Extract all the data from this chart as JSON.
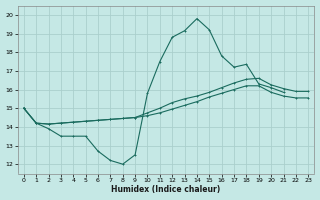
{
  "xlabel": "Humidex (Indice chaleur)",
  "xlim": [
    -0.5,
    23.5
  ],
  "ylim": [
    11.5,
    20.5
  ],
  "xticks": [
    0,
    1,
    2,
    3,
    4,
    5,
    6,
    7,
    8,
    9,
    10,
    11,
    12,
    13,
    14,
    15,
    16,
    17,
    18,
    19,
    20,
    21,
    22,
    23
  ],
  "yticks": [
    12,
    13,
    14,
    15,
    16,
    17,
    18,
    19,
    20
  ],
  "bg_color": "#c5e8e5",
  "grid_color": "#aacfcc",
  "line_color": "#1a6b5e",
  "line1_x": [
    0,
    1,
    2,
    3,
    4,
    5,
    6,
    7,
    8,
    9,
    10,
    11,
    12,
    13,
    14,
    15,
    16,
    17,
    18,
    19,
    20,
    21
  ],
  "line1_y": [
    15.0,
    14.2,
    13.9,
    13.5,
    13.5,
    13.5,
    12.7,
    12.2,
    12.0,
    12.5,
    15.8,
    17.5,
    18.8,
    19.15,
    19.8,
    19.2,
    17.8,
    17.2,
    17.35,
    16.3,
    16.1,
    15.85
  ],
  "line2_x": [
    0,
    1,
    2,
    3,
    4,
    5,
    6,
    7,
    8,
    9,
    10,
    11,
    12,
    13,
    14,
    15,
    16,
    17,
    18,
    19,
    20,
    21,
    22,
    23
  ],
  "line2_y": [
    15.0,
    14.2,
    14.15,
    14.2,
    14.25,
    14.3,
    14.35,
    14.4,
    14.45,
    14.5,
    14.75,
    15.0,
    15.3,
    15.5,
    15.65,
    15.85,
    16.1,
    16.35,
    16.55,
    16.6,
    16.25,
    16.05,
    15.9,
    15.9
  ],
  "line3_x": [
    0,
    1,
    2,
    3,
    4,
    5,
    6,
    7,
    8,
    9,
    10,
    11,
    12,
    13,
    14,
    15,
    16,
    17,
    18,
    19,
    20,
    21,
    22,
    23
  ],
  "line3_y": [
    15.0,
    14.2,
    14.15,
    14.2,
    14.25,
    14.3,
    14.35,
    14.4,
    14.45,
    14.5,
    14.6,
    14.75,
    14.95,
    15.15,
    15.35,
    15.6,
    15.8,
    16.0,
    16.2,
    16.2,
    15.85,
    15.65,
    15.55,
    15.55
  ]
}
